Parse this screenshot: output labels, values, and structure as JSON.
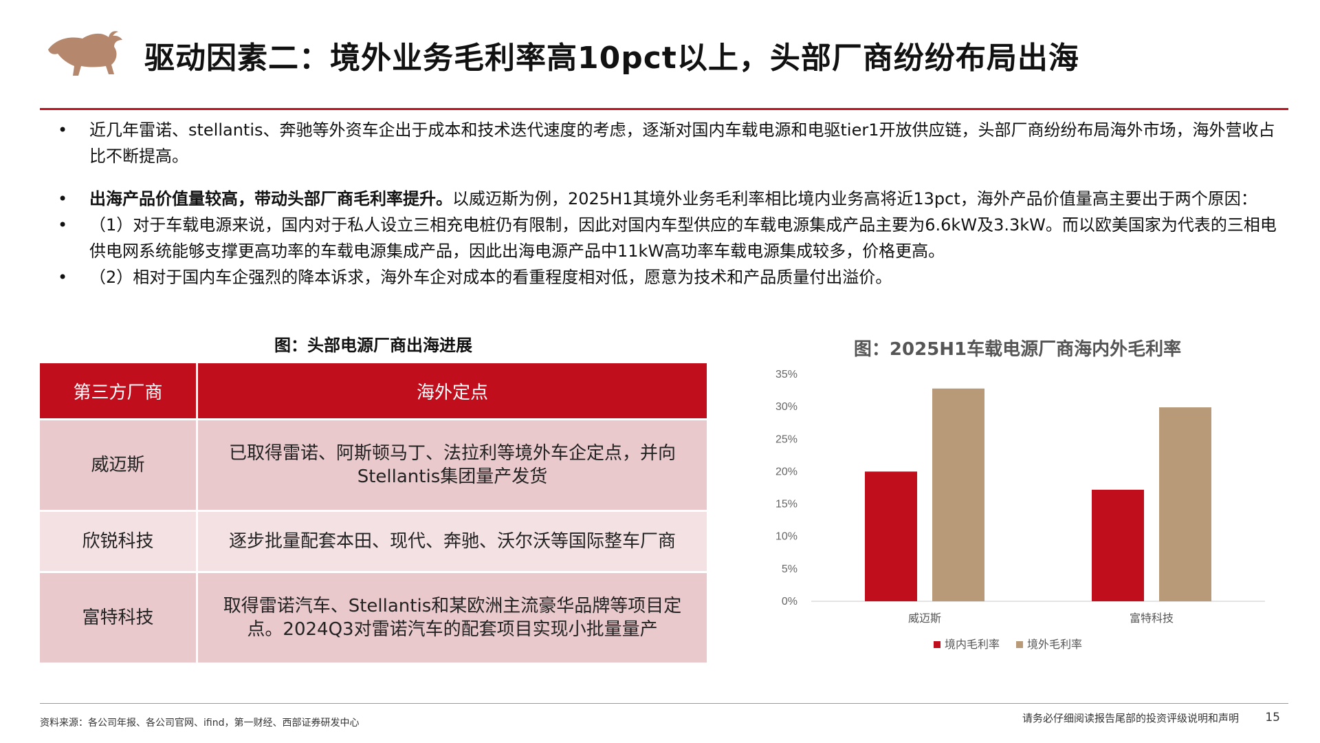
{
  "header": {
    "title": "驱动因素二：境外业务毛利率高10pct以上，头部厂商纷纷布局出海"
  },
  "bullets": {
    "marker": "•",
    "b1": "近几年雷诺、stellantis、奔驰等外资车企出于成本和技术迭代速度的考虑，逐渐对国内车载电源和电驱tier1开放供应链，头部厂商纷纷布局海外市场，海外营收占比不断提高。",
    "b2_bold": "出海产品价值量较高，带动头部厂商毛利率提升。",
    "b2_rest": "以威迈斯为例，2025H1其境外业务毛利率相比境内业务高将近13pct，海外产品价值量高主要出于两个原因：",
    "b3": "（1）对于车载电源来说，国内对于私人设立三相充电桩仍有限制，因此对国内车型供应的车载电源集成产品主要为6.6kW及3.3kW。而以欧美国家为代表的三相电供电网系统能够支撑更高功率的车载电源集成产品，因此出海电源产品中11kW高功率车载电源集成较多，价格更高。",
    "b4": "（2）相对于国内车企强烈的降本诉求，海外车企对成本的看重程度相对低，愿意为技术和产品质量付出溢价。"
  },
  "table": {
    "caption": "图：头部电源厂商出海进展",
    "headers": [
      "第三方厂商",
      "海外定点"
    ],
    "rows": [
      {
        "company": "威迈斯",
        "detail_l1": "已取得雷诺、阿斯顿马丁、法拉利等境外车企定点，并向",
        "detail_l2": "Stellantis集团量产发货"
      },
      {
        "company": "欣锐科技",
        "detail_l1": "逐步批量配套本田、现代、奔驰、沃尔沃等国际整车厂商",
        "detail_l2": ""
      },
      {
        "company": "富特科技",
        "detail_l1": "取得雷诺汽车、Stellantis和某欧洲主流豪华品牌等项目定",
        "detail_l2": "点。2024Q3对雷诺汽车的配套项目实现小批量量产"
      }
    ]
  },
  "chart_data": {
    "type": "bar",
    "title": "图：2025H1车载电源厂商海内外毛利率",
    "categories": [
      "威迈斯",
      "富特科技"
    ],
    "series": [
      {
        "name": "境内毛利率",
        "values": [
          20.0,
          17.2
        ],
        "color": "#c00e1d"
      },
      {
        "name": "境外毛利率",
        "values": [
          32.8,
          29.9
        ],
        "color": "#b89a79"
      }
    ],
    "ylim": [
      0,
      35
    ],
    "yticks": [
      "0%",
      "5%",
      "10%",
      "15%",
      "20%",
      "25%",
      "30%",
      "35%"
    ],
    "xlabel": "",
    "ylabel": "",
    "grid": false,
    "legend": "bottom"
  },
  "footer": {
    "source": "资料来源：各公司年报、各公司官网、ifind，第一财经、西部证券研发中心",
    "disclaimer": "请务必仔细阅读报告尾部的投资评级说明和声明",
    "page": "15"
  },
  "colors": {
    "accent": "#c00e1d",
    "secondary": "#b89a79",
    "logo": "#b5876d"
  },
  "icons": {
    "logo": "bull-logo-icon"
  }
}
